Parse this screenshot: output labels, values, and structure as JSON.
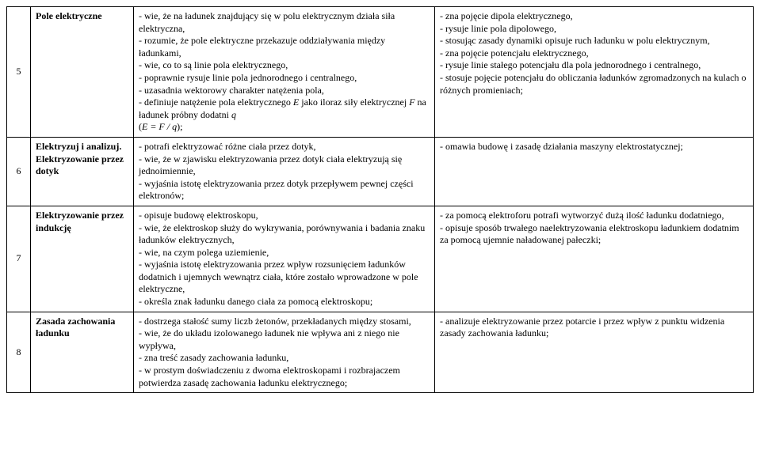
{
  "rows": [
    {
      "num": "5",
      "topic": "Pole elektryczne",
      "topic_bold": true,
      "basic": "- wie, że na ładunek znajdujący się w polu elektrycznym działa siła elektryczna,\n- rozumie, że pole elektryczne przekazuje oddziaływania między ładunkami,\n- wie, co to są linie pola elektrycznego,\n- poprawnie rysuje linie pola jednorodnego i centralnego,\n- uzasadnia wektorowy charakter natężenia pola,\n- definiuje natężenie pola elektrycznego E jako iloraz siły elektrycznej F na ładunek próbny dodatni q\n(E = F / q);",
      "ext": "- zna pojęcie dipola elektrycznego,\n- rysuje linie pola dipolowego,\n- stosując zasady dynamiki opisuje ruch ładunku w polu elektrycznym,\n- zna pojęcie potencjału elektrycznego,\n- rysuje linie stałego potencjału dla pola jednorodnego i centralnego,\n- stosuje pojęcie potencjału do obliczania ładunków zgromadzonych na kulach o różnych promieniach;"
    },
    {
      "num": "6",
      "topic": "Elektryzuj i analizuj.\nElektryzowanie przez dotyk",
      "topic_bold": true,
      "basic": "- potrafi elektryzować różne ciała przez dotyk,\n- wie, że w zjawisku elektryzowania przez dotyk ciała elektryzują się jednoimiennie,\n- wyjaśnia istotę elektryzowania przez dotyk przepływem pewnej części elektronów;",
      "ext": "- omawia budowę i zasadę działania maszyny elektrostatycznej;"
    },
    {
      "num": "7",
      "topic": "Elektryzowanie przez indukcję",
      "topic_bold": true,
      "basic": "- opisuje budowę elektroskopu,\n- wie, że elektroskop służy do wykrywania, porównywania i badania znaku ładunków elektrycznych,\n- wie, na czym polega uziemienie,\n- wyjaśnia istotę elektryzowania przez wpływ rozsunięciem ładunków dodatnich i ujemnych wewnątrz ciała, które zostało wprowadzone w pole elektryczne,\n- określa znak ładunku danego ciała za pomocą elektroskopu;",
      "ext": "- za pomocą elektroforu potrafi wytworzyć dużą ilość ładunku dodatniego,\n- opisuje sposób trwałego naelektryzowania elektroskopu ładunkiem dodatnim za pomocą ujemnie naładowanej pałeczki;"
    },
    {
      "num": "8",
      "topic": "Zasada zachowania ładunku",
      "topic_bold": true,
      "basic": "- dostrzega stałość sumy liczb żetonów, przekładanych między stosami,\n- wie, że do układu izolowanego ładunek nie wpływa ani z niego nie wypływa,\n- zna treść zasady zachowania ładunku,\n- w prostym doświadczeniu z dwoma elektroskopami i rozbrajaczem potwierdza zasadę zachowania ładunku elektrycznego;",
      "ext": "- analizuje elektryzowanie przez potarcie i przez wpływ z punktu widzenia zasady zachowania ładunku;"
    }
  ],
  "merge": {
    "r3_r4_ext_merged": false
  }
}
